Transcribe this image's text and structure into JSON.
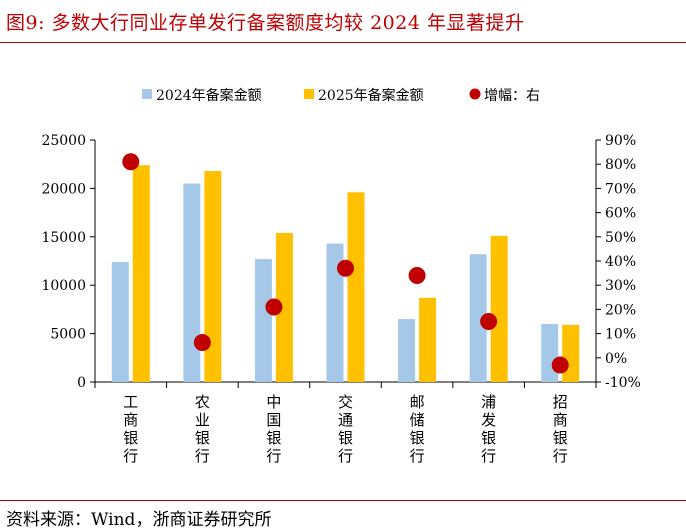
{
  "header": {
    "title": "图9:   多数大行同业存单发行备案额度均较 2024 年显著提升"
  },
  "footer": {
    "source": "资料来源：Wind，浙商证券研究所"
  },
  "chart_data": {
    "type": "bar",
    "categories": [
      "工商银行",
      "农业银行",
      "中国银行",
      "交通银行",
      "邮储银行",
      "浦发银行",
      "招商银行"
    ],
    "series": [
      {
        "name": "2024年备案金额",
        "type": "bar",
        "axis": "left",
        "color": "#a6c8e8",
        "values": [
          12400,
          20500,
          12700,
          14300,
          6500,
          13200,
          6000
        ]
      },
      {
        "name": "2025年备案金额",
        "type": "bar",
        "axis": "left",
        "color": "#ffc000",
        "values": [
          22400,
          21800,
          15400,
          19600,
          8700,
          15100,
          5900
        ]
      },
      {
        "name": "增幅：右",
        "type": "scatter",
        "axis": "right",
        "color": "#c00000",
        "values": [
          0.81,
          0.063,
          0.21,
          0.37,
          0.34,
          0.15,
          -0.03
        ]
      }
    ],
    "left_axis": {
      "min": 0,
      "max": 25000,
      "ticks": [
        "0",
        "5000",
        "10000",
        "15000",
        "20000",
        "25000"
      ]
    },
    "right_axis": {
      "min": -0.1,
      "max": 0.9,
      "ticks": [
        "-10%",
        "0%",
        "10%",
        "20%",
        "30%",
        "40%",
        "50%",
        "60%",
        "70%",
        "80%",
        "90%"
      ]
    },
    "legend_position": "top",
    "grid": false
  }
}
